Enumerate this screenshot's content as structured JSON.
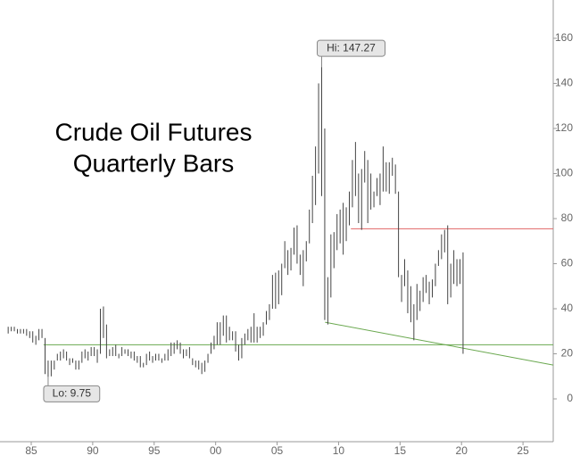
{
  "chart_data": {
    "type": "range-bar",
    "title": "Crude Oil Futures",
    "subtitle": "Quarterly Bars",
    "x": [
      1983.125,
      1983.375,
      1983.625,
      1983.875,
      1984.125,
      1984.375,
      1984.625,
      1984.875,
      1985.125,
      1985.375,
      1985.625,
      1985.875,
      1986.125,
      1986.375,
      1986.625,
      1986.875,
      1987.125,
      1987.375,
      1987.625,
      1987.875,
      1988.125,
      1988.375,
      1988.625,
      1988.875,
      1989.125,
      1989.375,
      1989.625,
      1989.875,
      1990.125,
      1990.375,
      1990.625,
      1990.875,
      1991.125,
      1991.375,
      1991.625,
      1991.875,
      1992.125,
      1992.375,
      1992.625,
      1992.875,
      1993.125,
      1993.375,
      1993.625,
      1993.875,
      1994.125,
      1994.375,
      1994.625,
      1994.875,
      1995.125,
      1995.375,
      1995.625,
      1995.875,
      1996.125,
      1996.375,
      1996.625,
      1996.875,
      1997.125,
      1997.375,
      1997.625,
      1997.875,
      1998.125,
      1998.375,
      1998.625,
      1998.875,
      1999.125,
      1999.375,
      1999.625,
      1999.875,
      2000.125,
      2000.375,
      2000.625,
      2000.875,
      2001.125,
      2001.375,
      2001.625,
      2001.875,
      2002.125,
      2002.375,
      2002.625,
      2002.875,
      2003.125,
      2003.375,
      2003.625,
      2003.875,
      2004.125,
      2004.375,
      2004.625,
      2004.875,
      2005.125,
      2005.375,
      2005.625,
      2005.875,
      2006.125,
      2006.375,
      2006.625,
      2006.875,
      2007.125,
      2007.375,
      2007.625,
      2007.875,
      2008.125,
      2008.375,
      2008.625,
      2008.875,
      2009.125,
      2009.375,
      2009.625,
      2009.875,
      2010.125,
      2010.375,
      2010.625,
      2010.875,
      2011.125,
      2011.375,
      2011.625,
      2011.875,
      2012.125,
      2012.375,
      2012.625,
      2012.875,
      2013.125,
      2013.375,
      2013.625,
      2013.875,
      2014.125,
      2014.375,
      2014.625,
      2014.875,
      2015.125,
      2015.375,
      2015.625,
      2015.875,
      2016.125,
      2016.375,
      2016.625,
      2016.875,
      2017.125,
      2017.375,
      2017.625,
      2017.875,
      2018.125,
      2018.375,
      2018.625,
      2018.875,
      2019.125,
      2019.375,
      2019.625,
      2019.875,
      2020.125
    ],
    "low": [
      29,
      30,
      30,
      29,
      29,
      29,
      28,
      27,
      25,
      24,
      26,
      27,
      11,
      9.75,
      10,
      13,
      17,
      17,
      18,
      17,
      15,
      16,
      13,
      13,
      16,
      18,
      17,
      19,
      19,
      16,
      20,
      27,
      18,
      19,
      19,
      19,
      18,
      19,
      20,
      19,
      18,
      17,
      16,
      14,
      14,
      15,
      17,
      16,
      17,
      17,
      16,
      17,
      17,
      19,
      20,
      22,
      20,
      18,
      19,
      18,
      15,
      14,
      13,
      11,
      12,
      16,
      20,
      22,
      24,
      24,
      28,
      25,
      26,
      26,
      21,
      17,
      18,
      24,
      26,
      25,
      25,
      25,
      27,
      28,
      33,
      35,
      40,
      40,
      42,
      46,
      58,
      55,
      57,
      64,
      60,
      55,
      50,
      61,
      69,
      78,
      86,
      100,
      90,
      35,
      33,
      45,
      58,
      66,
      69,
      64,
      70,
      77,
      85,
      90,
      78,
      75,
      96,
      78,
      84,
      85,
      90,
      86,
      92,
      92,
      91,
      99,
      91,
      54,
      43,
      50,
      38,
      34,
      26,
      35,
      39,
      43,
      47,
      42,
      45,
      50,
      59,
      62,
      65,
      42,
      45,
      51,
      50,
      51,
      20
    ],
    "high": [
      32,
      32,
      32,
      31,
      31,
      31,
      31,
      30,
      30,
      28,
      31,
      31,
      27,
      17,
      17,
      17,
      20,
      21,
      22,
      21,
      18,
      18,
      17,
      17,
      21,
      22,
      21,
      23,
      23,
      22,
      40,
      41,
      33,
      22,
      23,
      24,
      20,
      23,
      22,
      22,
      21,
      21,
      19,
      19,
      16,
      20,
      21,
      19,
      20,
      20,
      18,
      20,
      22,
      25,
      25,
      26,
      25,
      22,
      22,
      23,
      18,
      17,
      17,
      16,
      17,
      20,
      25,
      28,
      34,
      34,
      37,
      37,
      32,
      30,
      30,
      24,
      27,
      29,
      31,
      32,
      38,
      32,
      32,
      34,
      39,
      42,
      55,
      56,
      57,
      60,
      70,
      66,
      67,
      76,
      77,
      64,
      66,
      70,
      84,
      99,
      112,
      140,
      147.27,
      120,
      54,
      73,
      74,
      82,
      84,
      87,
      85,
      92,
      106,
      114,
      100,
      102,
      110,
      106,
      100,
      92,
      98,
      100,
      112,
      105,
      105,
      107,
      104,
      92,
      55,
      62,
      57,
      50,
      42,
      51,
      48,
      54,
      55,
      52,
      53,
      60,
      66,
      73,
      75,
      77,
      60,
      66,
      62,
      62,
      65
    ],
    "color": "#444444",
    "xlim": [
      1982.46,
      2027.46
    ],
    "ylim": [
      -19,
      177
    ],
    "xticks": [
      {
        "value": 1985,
        "label": "85"
      },
      {
        "value": 1990,
        "label": "90"
      },
      {
        "value": 1995,
        "label": "95"
      },
      {
        "value": 2000,
        "label": "00"
      },
      {
        "value": 2005,
        "label": "05"
      },
      {
        "value": 2010,
        "label": "10"
      },
      {
        "value": 2015,
        "label": "15"
      },
      {
        "value": 2020,
        "label": "20"
      },
      {
        "value": 2025,
        "label": "25"
      }
    ],
    "yticks": [
      0,
      20,
      40,
      60,
      80,
      100,
      120,
      140,
      160
    ],
    "lines": [
      {
        "color": "#e06666",
        "points": [
          [
            2011,
            75.5
          ],
          [
            2027.46,
            75.5
          ]
        ]
      },
      {
        "color": "#6aa84f",
        "points": [
          [
            1986,
            24
          ],
          [
            2027.46,
            24
          ]
        ]
      },
      {
        "color": "#6aa84f",
        "points": [
          [
            2008.9,
            34
          ],
          [
            2027.46,
            15
          ]
        ]
      }
    ],
    "annotations": [
      {
        "text": "Hi: 147.27",
        "x": 2008.625,
        "y": 147.27,
        "side": "above"
      },
      {
        "text": "Lo: 9.75",
        "x": 1986.375,
        "y": 9.75,
        "side": "below"
      }
    ]
  }
}
